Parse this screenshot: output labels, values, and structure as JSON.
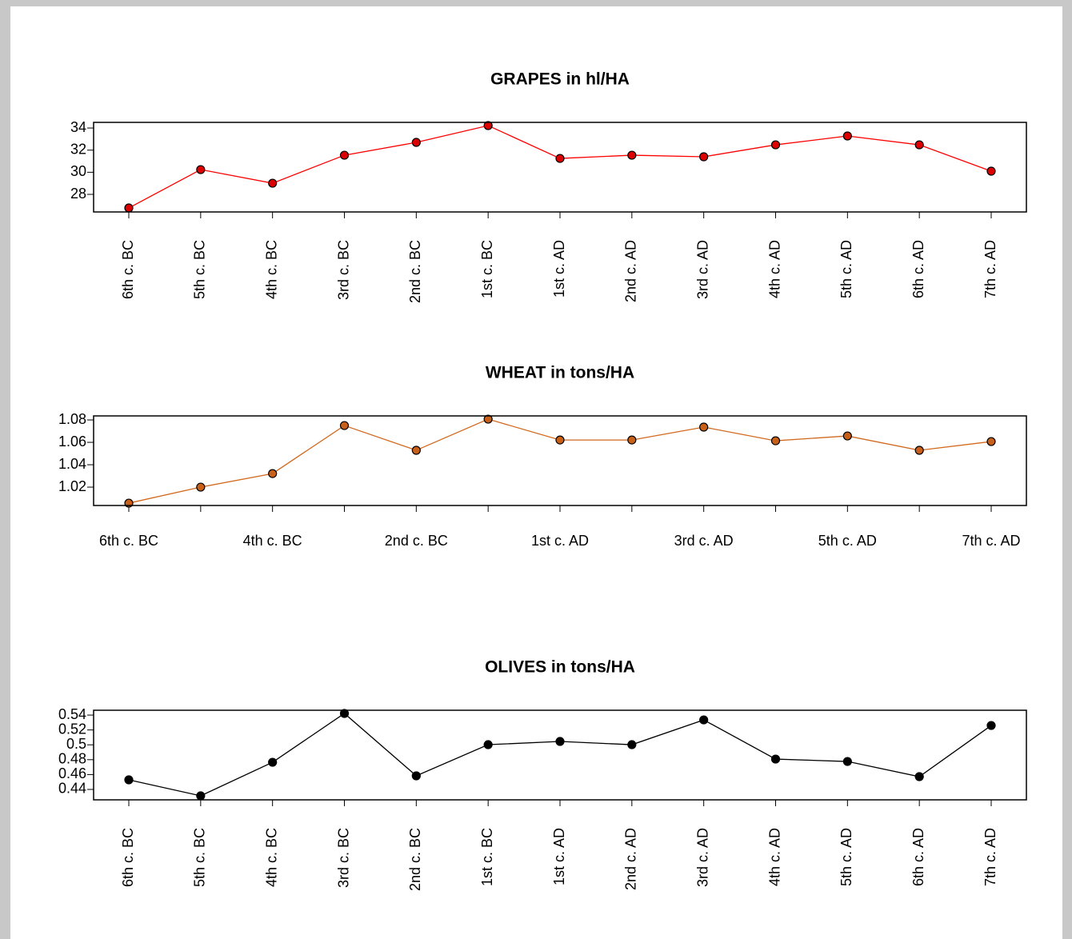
{
  "chart_data": [
    {
      "type": "line",
      "title": "GRAPES in hl/HA",
      "categories": [
        "6th c. BC",
        "5th c. BC",
        "4th c. BC",
        "3rd c. BC",
        "2nd c. BC",
        "1st c. BC",
        "1st c. AD",
        "2nd c. AD",
        "3rd c. AD",
        "4th c. AD",
        "5th c. AD",
        "6th c. AD",
        "7th c. AD"
      ],
      "values": [
        26.77,
        30.24,
        29.01,
        31.54,
        32.7,
        34.22,
        31.25,
        31.54,
        31.4,
        32.48,
        33.28,
        32.48,
        30.1
      ],
      "color": "#ff0000",
      "marker_color": "#dd0000",
      "ylim": [
        26.41,
        34.51
      ],
      "yticks": [
        28,
        30,
        32,
        34
      ]
    },
    {
      "type": "line",
      "title": "WHEAT in tons/HA",
      "categories": [
        "6th c. BC",
        null,
        "4th c. BC",
        null,
        "2nd c. BC",
        null,
        "1st c. AD",
        null,
        "3rd c. AD",
        null,
        "5th c. AD",
        null,
        "7th c. AD"
      ],
      "values": [
        1.0057,
        1.02,
        1.0321,
        1.075,
        1.0529,
        1.0807,
        1.0621,
        1.0621,
        1.0736,
        1.0614,
        1.0657,
        1.0529,
        1.0607
      ],
      "color": "#d2691e",
      "marker_color": "#c8601a",
      "ylim": [
        1.0036,
        1.0836
      ],
      "yticks": [
        1.02,
        1.04,
        1.06,
        1.08
      ]
    },
    {
      "type": "line",
      "title": "OLIVES in tons/HA",
      "categories": [
        "6th c. BC",
        "5th c. BC",
        "4th c. BC",
        "3rd c. BC",
        "2nd c. BC",
        "1st c. BC",
        "1st c. AD",
        "2nd c. AD",
        "3rd c. AD",
        "4th c. AD",
        "5th c. AD",
        "6th c. AD",
        "7th c. AD"
      ],
      "values": [
        0.4529,
        0.4314,
        0.4765,
        0.5422,
        0.4583,
        0.5002,
        0.5045,
        0.5002,
        0.5335,
        0.4808,
        0.4776,
        0.4572,
        0.526
      ],
      "color": "#000000",
      "marker_color": "#000000",
      "ylim": [
        0.426,
        0.5465
      ],
      "yticks": [
        0.44,
        0.46,
        0.48,
        0.5,
        0.52,
        0.54
      ]
    }
  ]
}
